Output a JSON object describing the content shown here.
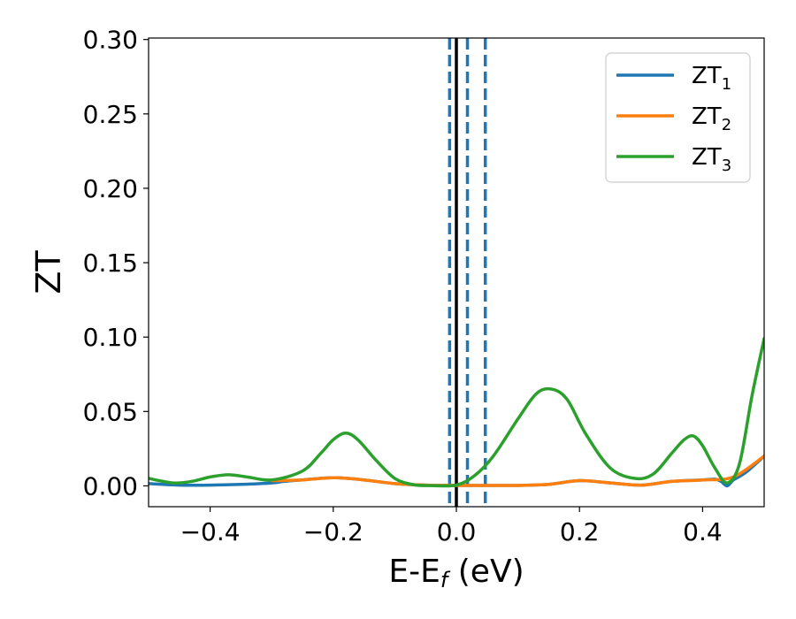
{
  "chart_data": {
    "type": "line",
    "xlabel": {
      "main": "E-E",
      "sub": "f",
      "tail": " (eV)"
    },
    "ylabel": "ZT",
    "xlim": [
      -0.5,
      0.5
    ],
    "ylim": [
      -0.014,
      0.301
    ],
    "xticks": [
      -0.4,
      -0.2,
      0.0,
      0.2,
      0.4
    ],
    "xtick_labels": [
      "−0.4",
      "−0.2",
      "0.0",
      "0.2",
      "0.4"
    ],
    "yticks": [
      0.0,
      0.05,
      0.1,
      0.15,
      0.2,
      0.25,
      0.3
    ],
    "ytick_labels": [
      "0.00",
      "0.05",
      "0.10",
      "0.15",
      "0.20",
      "0.25",
      "0.30"
    ],
    "legend_position": "top-right",
    "grid": false,
    "vlines": [
      {
        "x": -0.011,
        "style": "dashed",
        "color": "#1f77b4"
      },
      {
        "x": 0.0,
        "style": "solid",
        "color": "#000000"
      },
      {
        "x": 0.018,
        "style": "dashed",
        "color": "#1f77b4"
      },
      {
        "x": 0.047,
        "style": "dashed",
        "color": "#1f77b4"
      }
    ],
    "series": [
      {
        "name": "ZT",
        "name_sub": "1",
        "color": "#1f77b4",
        "x": [
          -0.5,
          -0.45,
          -0.4,
          -0.35,
          -0.3,
          -0.28,
          -0.25,
          -0.2,
          -0.15,
          -0.1,
          -0.05,
          0.0,
          0.05,
          0.1,
          0.15,
          0.2,
          0.25,
          0.3,
          0.35,
          0.4,
          0.42,
          0.43,
          0.44,
          0.45,
          0.47,
          0.5
        ],
        "y": [
          0.0015,
          0.0005,
          0.0005,
          0.001,
          0.002,
          0.003,
          0.004,
          0.0055,
          0.004,
          0.0015,
          0.0005,
          0.0003,
          0.0003,
          0.0003,
          0.001,
          0.0035,
          0.002,
          0.0005,
          0.003,
          0.004,
          0.0045,
          0.003,
          0.0,
          0.004,
          0.009,
          0.02
        ]
      },
      {
        "name": "ZT",
        "name_sub": "2",
        "color": "#ff7f0e",
        "x": [
          -0.3,
          -0.25,
          -0.2,
          -0.15,
          -0.1,
          -0.05,
          0.0,
          0.05,
          0.1,
          0.15,
          0.2,
          0.25,
          0.3,
          0.35,
          0.4,
          0.45,
          0.5
        ],
        "y": [
          0.0035,
          0.004,
          0.0055,
          0.004,
          0.0015,
          0.0005,
          0.0003,
          0.0003,
          0.0003,
          0.001,
          0.0035,
          0.002,
          0.0005,
          0.003,
          0.004,
          0.006,
          0.02
        ]
      },
      {
        "name": "ZT",
        "name_sub": "3",
        "color": "#2ca02c",
        "x": [
          -0.5,
          -0.46,
          -0.43,
          -0.4,
          -0.37,
          -0.34,
          -0.3,
          -0.25,
          -0.22,
          -0.2,
          -0.18,
          -0.16,
          -0.13,
          -0.1,
          -0.07,
          -0.04,
          0.0,
          0.03,
          0.06,
          0.1,
          0.13,
          0.155,
          0.18,
          0.21,
          0.25,
          0.29,
          0.32,
          0.35,
          0.37,
          0.385,
          0.4,
          0.42,
          0.44,
          0.46,
          0.48,
          0.5
        ],
        "y": [
          0.005,
          0.002,
          0.003,
          0.006,
          0.0075,
          0.006,
          0.004,
          0.01,
          0.022,
          0.031,
          0.0355,
          0.031,
          0.017,
          0.005,
          0.0008,
          0.0002,
          0.0005,
          0.007,
          0.02,
          0.045,
          0.062,
          0.065,
          0.058,
          0.035,
          0.012,
          0.005,
          0.008,
          0.022,
          0.031,
          0.0335,
          0.027,
          0.012,
          0.002,
          0.015,
          0.06,
          0.099
        ]
      }
    ]
  }
}
